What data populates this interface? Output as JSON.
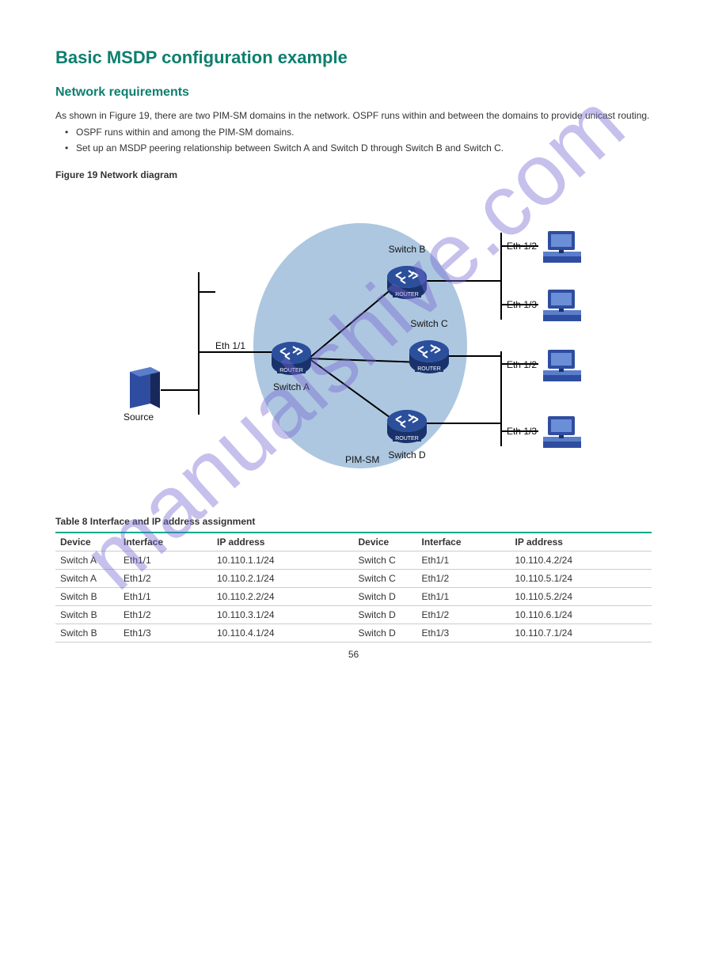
{
  "page": {
    "title": "Basic MSDP configuration example",
    "sub": "Network requirements",
    "bullets": [
      "OSPF runs within and among the PIM-SM domains.",
      "Set up an MSDP peering relationship between Switch A and Switch D through Switch B and Switch C."
    ],
    "paragraph": "As shown in Figure 19, there are two PIM-SM domains in the network. OSPF runs within and between the domains to provide unicast routing.",
    "fig_caption": "Figure 19 Network diagram",
    "table_caption": "Table 8 Interface and IP address assignment",
    "page_number": "56"
  },
  "diagram": {
    "watermark_text": "manualshive.com",
    "ellipse_label": "PIM-SM",
    "left_net_label": "Eth 1/1",
    "server_label": "Source",
    "routers": [
      {
        "id": "A",
        "label": "Switch A",
        "label_pos": "bottom"
      },
      {
        "id": "B",
        "label": "Switch B",
        "label_pos": "top"
      },
      {
        "id": "C",
        "label": "Switch C",
        "label_pos": "top"
      },
      {
        "id": "D",
        "label": "Switch D",
        "label_pos": "bottom"
      }
    ],
    "pcs": [
      {
        "id": "pc1",
        "label": "Eth 1/2"
      },
      {
        "id": "pc2",
        "label": "Eth 1/3"
      },
      {
        "id": "pc3",
        "label": "Eth 1/2"
      },
      {
        "id": "pc4",
        "label": "Eth 1/3"
      }
    ],
    "colors": {
      "router_top": "#5b7ecb",
      "router_mid": "#2c4f9c",
      "router_dark": "#19326c",
      "server_face": "#2f4da0",
      "server_side": "#18285a",
      "pc_color": "#2f4da0",
      "ellipse": "#a9c4de"
    }
  },
  "table": {
    "headers": [
      "Device",
      "Interface",
      "IP address",
      "Device",
      "Interface",
      "IP address"
    ],
    "rows": [
      [
        "Switch A",
        "Eth1/1",
        "10.110.1.1/24",
        "Switch C",
        "Eth1/1",
        "10.110.4.2/24"
      ],
      [
        "Switch A",
        "Eth1/2",
        "10.110.2.1/24",
        "Switch C",
        "Eth1/2",
        "10.110.5.1/24"
      ],
      [
        "Switch B",
        "Eth1/1",
        "10.110.2.2/24",
        "Switch D",
        "Eth1/1",
        "10.110.5.2/24"
      ],
      [
        "Switch B",
        "Eth1/2",
        "10.110.3.1/24",
        "Switch D",
        "Eth1/2",
        "10.110.6.1/24"
      ],
      [
        "Switch B",
        "Eth1/3",
        "10.110.4.1/24",
        "Switch D",
        "Eth1/3",
        "10.110.7.1/24"
      ]
    ]
  }
}
